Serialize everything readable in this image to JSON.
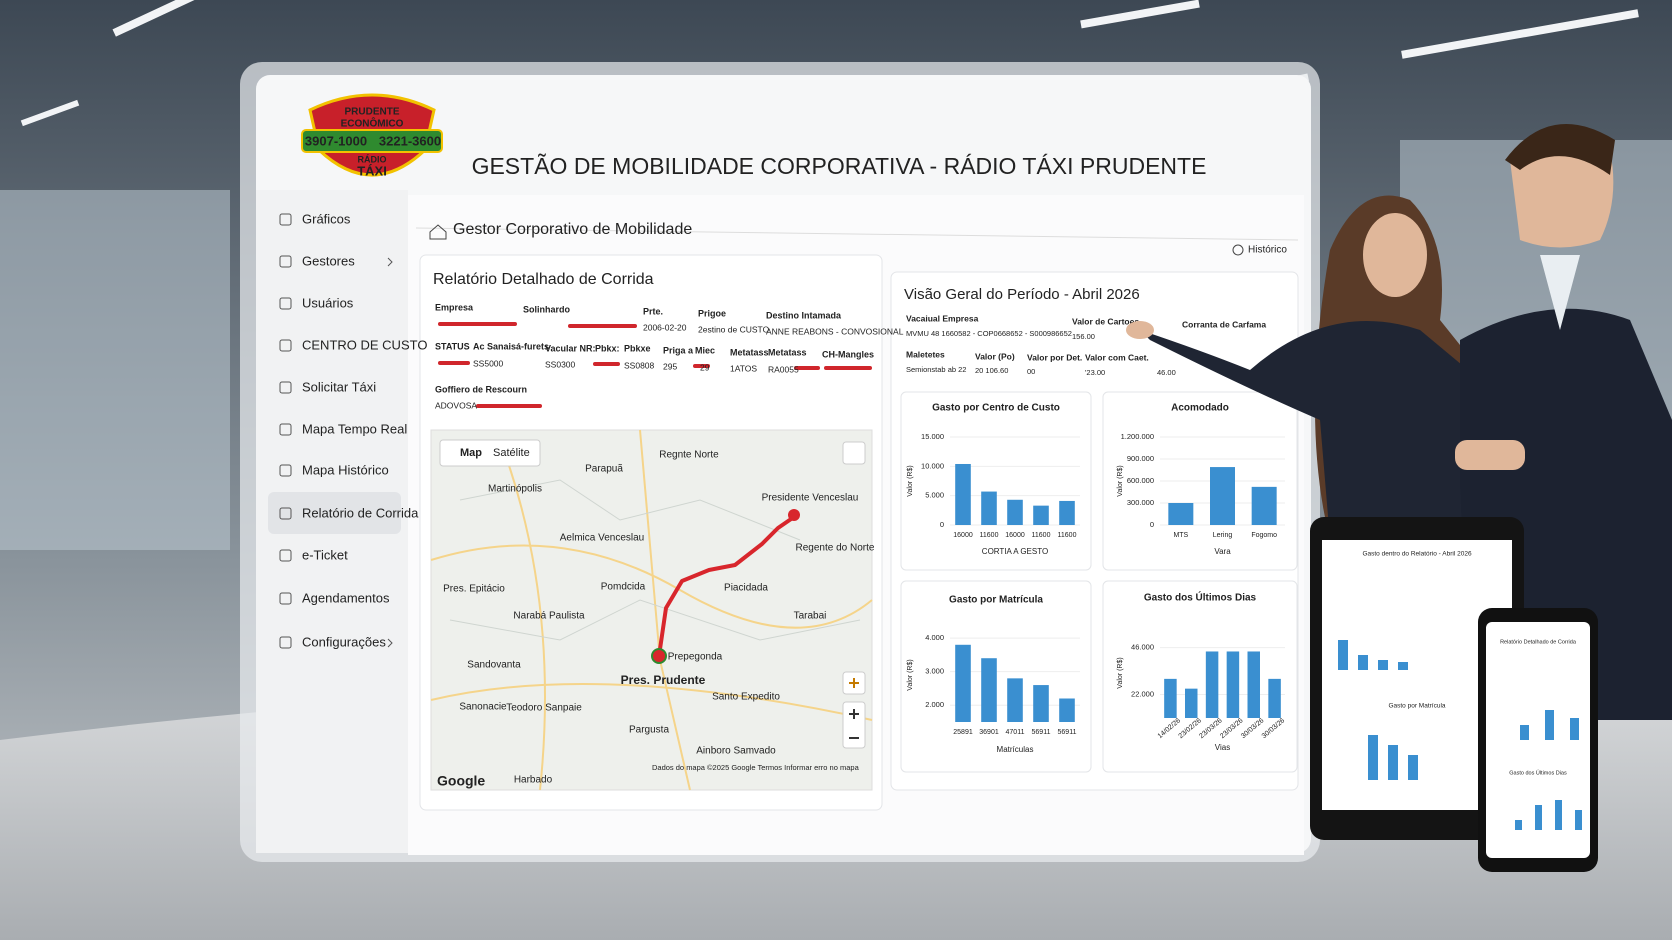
{
  "header": {
    "logo": {
      "line1": "PRUDENTE",
      "line2": "ECONÔMICO",
      "phone1": "3907-1000",
      "phone2": "3221-3600",
      "line3": "RÁDIO",
      "line4": "TÁXI"
    },
    "title": "GESTÃO DE MOBILIDADE CORPORATIVA - RÁDIO TÁXI PRUDENTE"
  },
  "sidebar": {
    "items": [
      "Gráficos",
      "Gestores",
      "Usuários",
      "CENTRO DE CUSTO",
      "Solicitar Táxi",
      "Mapa Tempo Real",
      "Mapa Histórico",
      "Relatório de Corrida",
      "e-Ticket",
      "Agendamentos",
      "Configurações"
    ]
  },
  "content": {
    "title": "Gestor Corporativo de Mobilidade",
    "history": "Histórico"
  },
  "report": {
    "title": "Relatório Detalhado de Corrida",
    "labels": [
      "Empresa",
      "Solinhardo",
      "Prte.",
      "Prigoe",
      "Destino Intamada",
      "STATUS",
      "Ac Sanaisá-furets",
      "Vacular NR:",
      "Pbkx:",
      "Pbkxe",
      "Priga a",
      "Miec",
      "Metatass",
      "Metatass",
      "CH-Mangles",
      "Goffiero de Rescourn"
    ],
    "values": [
      "2006-02-20",
      "2estino de CUSTO",
      "ANNE REABONS - CONVOSIONAL",
      "SS5000",
      "SS0300",
      "SS0808",
      "295",
      "29",
      "1ATOS",
      "RA0055",
      "ADOVOSA"
    ]
  },
  "map": {
    "tabs": [
      "Map",
      "Satélite"
    ],
    "places": [
      "Parapuã",
      "Regnte Norte",
      "Martinópolis",
      "Presidente Venceslau",
      "Aelmica Venceslau",
      "Regente do Norte",
      "Pres. Epitácio",
      "Pomdcida",
      "Piacidada",
      "Narabá Paulista",
      "Tarabai",
      "Sandovanta",
      "Prepegonda",
      "Pres. Prudente",
      "Santo Expedito",
      "Teodoro Sanpaie",
      "Sanonacie",
      "Pargusta",
      "Ainboro Samvado",
      "Harbado"
    ],
    "brand": "Google",
    "footer": "Dados do mapa ©2025 Google    Termos    Informar erro no mapa"
  },
  "overview": {
    "title": "Visão Geral do Período - Abril 2026",
    "labels": [
      "Vacaiual Empresa",
      "Valor de Cartoes",
      "Corranta de Carfama",
      "Maletetes",
      "Valor (Po)",
      "Valor por Det.",
      "Valor com Caet."
    ],
    "values": [
      "MVMU 48 1660582 - COP0668652 - S000986652",
      "156.00",
      "Semionstab ab 22",
      "20 106.60",
      "00",
      "'23.00",
      "46.00"
    ]
  },
  "charts": [
    {
      "type": "bar",
      "title": "Gasto por Centro de Custo",
      "ylabel": "Valor (R$)",
      "xlabel": "CORTIA A GESTO",
      "color": "#3a8fd0",
      "categories": [
        "16000",
        "11600",
        "16000",
        "11600",
        "11600"
      ],
      "values": [
        10400,
        5700,
        4300,
        3300,
        4100
      ],
      "ylim": [
        0,
        15000
      ],
      "yticks": [
        0,
        {
          "value": 5000,
          "label": "5.000"
        },
        {
          "value": 10000,
          "label": "10.000"
        },
        {
          "value": 15000,
          "label": "15.000"
        }
      ]
    },
    {
      "type": "bar",
      "title": "Acomodado",
      "ylabel": "Valor (R$)",
      "xlabel": "Vara",
      "color": "#3a8fd0",
      "categories": [
        "MTS",
        "Lering",
        "Fogomo"
      ],
      "values": [
        300000,
        790000,
        520000
      ],
      "ylim": [
        0,
        1200000
      ],
      "yticks": [
        0,
        {
          "value": 300000,
          "label": "300.000"
        },
        {
          "value": 600000,
          "label": "600.000"
        },
        {
          "value": 900000,
          "label": "900.000"
        },
        {
          "value": 1200000,
          "label": "1.200.000"
        }
      ]
    },
    {
      "type": "bar",
      "title": "Gasto por Matrícula",
      "ylabel": "Valor (R$)",
      "xlabel": "Matrículas",
      "color": "#3a8fd0",
      "categories": [
        "25891",
        "36901",
        "47011",
        "56911",
        "56911"
      ],
      "values": [
        3800,
        3400,
        2800,
        2600,
        2200
      ],
      "ylim": [
        1500,
        4300
      ],
      "yticks": [
        {
          "value": 2000,
          "label": "2.000"
        },
        {
          "value": 3000,
          "label": "3.000"
        },
        {
          "value": 4000,
          "label": "4.000"
        }
      ]
    },
    {
      "type": "bar",
      "title": "Gasto dos Últimos Dias",
      "ylabel": "Valor (R$)",
      "xlabel": "Vias",
      "color": "#3a8fd0",
      "categories": [
        "14/02/26",
        "23/02/26",
        "23/03/26",
        "23/03/26",
        "30/03/26",
        "30/03/26"
      ],
      "values": [
        30000,
        25000,
        44000,
        44000,
        44000,
        30000
      ],
      "ylim": [
        10000,
        56000
      ],
      "yticks": [
        {
          "value": 22000,
          "label": "22.000"
        },
        {
          "value": 46000,
          "label": "46.000"
        }
      ]
    }
  ],
  "devices": {
    "tablet": [
      "Gasto dentro do Relatório - Abril 2026",
      "Gasto por Matrícula"
    ],
    "phone": [
      "Relatório Detalhado de Corrida",
      "Gasto dos Últimos Dias"
    ]
  }
}
